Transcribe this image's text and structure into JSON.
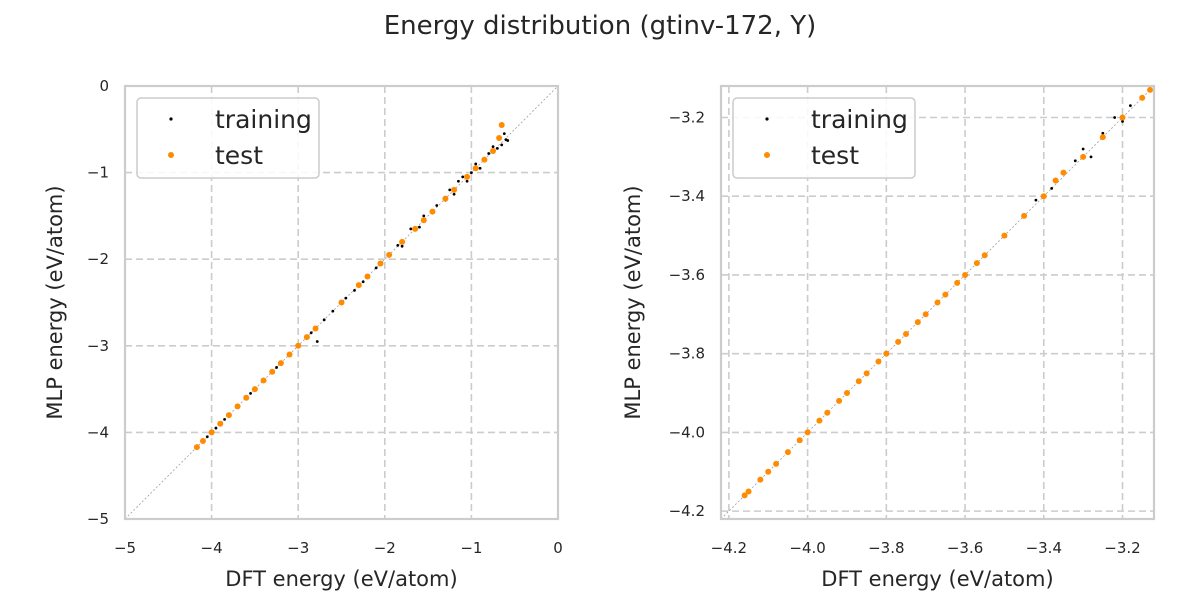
{
  "figure": {
    "title": "Energy distribution (gtinv-172, Y)"
  },
  "colors": {
    "training": "#000000",
    "test": "#ff8c00",
    "grid": "#cccccc",
    "spine": "#cccccc",
    "diagonal": "#a0a0a0"
  },
  "chart_data": [
    {
      "type": "scatter",
      "title": "",
      "xlabel": "DFT energy (eV/atom)",
      "ylabel": "MLP energy (eV/atom)",
      "xlim": [
        -5,
        0
      ],
      "ylim": [
        -5,
        0
      ],
      "xticks": [
        -5,
        -4,
        -3,
        -2,
        -1,
        0
      ],
      "yticks": [
        -5,
        -4,
        -3,
        -2,
        -1,
        0
      ],
      "xtick_labels": [
        "−5",
        "−4",
        "−3",
        "−2",
        "−1",
        "0"
      ],
      "ytick_labels": [
        "−5",
        "−4",
        "−3",
        "−2",
        "−1",
        "0"
      ],
      "grid": true,
      "diagonal_reference": true,
      "legend_position": "upper-left",
      "series": [
        {
          "name": "training",
          "color": "#000000",
          "points": [
            [
              -4.17,
              -4.16
            ],
            [
              -4.05,
              -4.05
            ],
            [
              -3.95,
              -3.95
            ],
            [
              -3.85,
              -3.85
            ],
            [
              -3.7,
              -3.7
            ],
            [
              -3.55,
              -3.55
            ],
            [
              -3.4,
              -3.4
            ],
            [
              -3.25,
              -3.25
            ],
            [
              -3.1,
              -3.1
            ],
            [
              -3.0,
              -3.0
            ],
            [
              -2.85,
              -2.85
            ],
            [
              -2.7,
              -2.7
            ],
            [
              -2.78,
              -2.95
            ],
            [
              -2.6,
              -2.6
            ],
            [
              -2.45,
              -2.45
            ],
            [
              -2.35,
              -2.36
            ],
            [
              -2.25,
              -2.26
            ],
            [
              -2.1,
              -2.1
            ],
            [
              -1.95,
              -1.94
            ],
            [
              -1.85,
              -1.84
            ],
            [
              -1.8,
              -1.85
            ],
            [
              -1.7,
              -1.65
            ],
            [
              -1.6,
              -1.63
            ],
            [
              -1.55,
              -1.5
            ],
            [
              -1.45,
              -1.44
            ],
            [
              -1.4,
              -1.38
            ],
            [
              -1.3,
              -1.32
            ],
            [
              -1.25,
              -1.2
            ],
            [
              -1.2,
              -1.25
            ],
            [
              -1.15,
              -1.1
            ],
            [
              -1.1,
              -1.05
            ],
            [
              -1.05,
              -1.1
            ],
            [
              -1.0,
              -1.0
            ],
            [
              -0.95,
              -0.9
            ],
            [
              -0.9,
              -0.95
            ],
            [
              -0.85,
              -0.85
            ],
            [
              -0.8,
              -0.78
            ],
            [
              -0.75,
              -0.7
            ],
            [
              -0.7,
              -0.72
            ],
            [
              -0.65,
              -0.68
            ],
            [
              -0.6,
              -0.62
            ],
            [
              -0.62,
              -0.55
            ],
            [
              -0.58,
              -0.63
            ]
          ]
        },
        {
          "name": "test",
          "color": "#ff8c00",
          "points": [
            [
              -4.17,
              -4.17
            ],
            [
              -4.1,
              -4.1
            ],
            [
              -4.0,
              -4.0
            ],
            [
              -3.9,
              -3.9
            ],
            [
              -3.8,
              -3.8
            ],
            [
              -3.7,
              -3.7
            ],
            [
              -3.6,
              -3.6
            ],
            [
              -3.5,
              -3.5
            ],
            [
              -3.4,
              -3.4
            ],
            [
              -3.3,
              -3.3
            ],
            [
              -3.2,
              -3.2
            ],
            [
              -3.1,
              -3.1
            ],
            [
              -3.0,
              -3.0
            ],
            [
              -2.9,
              -2.9
            ],
            [
              -2.8,
              -2.8
            ],
            [
              -2.5,
              -2.5
            ],
            [
              -2.3,
              -2.3
            ],
            [
              -2.2,
              -2.2
            ],
            [
              -2.05,
              -2.05
            ],
            [
              -1.95,
              -1.95
            ],
            [
              -1.8,
              -1.8
            ],
            [
              -1.65,
              -1.65
            ],
            [
              -1.55,
              -1.55
            ],
            [
              -1.45,
              -1.45
            ],
            [
              -1.3,
              -1.3
            ],
            [
              -1.2,
              -1.2
            ],
            [
              -1.05,
              -1.05
            ],
            [
              -0.95,
              -0.95
            ],
            [
              -0.85,
              -0.85
            ],
            [
              -0.75,
              -0.75
            ],
            [
              -0.68,
              -0.6
            ],
            [
              -0.65,
              -0.45
            ]
          ]
        }
      ]
    },
    {
      "type": "scatter",
      "title": "",
      "xlabel": "DFT energy (eV/atom)",
      "ylabel": "MLP energy (eV/atom)",
      "xlim": [
        -4.22,
        -3.12
      ],
      "ylim": [
        -4.22,
        -3.12
      ],
      "xticks": [
        -4.2,
        -4.0,
        -3.8,
        -3.6,
        -3.4,
        -3.2
      ],
      "yticks": [
        -4.2,
        -4.0,
        -3.8,
        -3.6,
        -3.4,
        -3.2
      ],
      "xtick_labels": [
        "−4.2",
        "−4.0",
        "−3.8",
        "−3.6",
        "−3.4",
        "−3.2"
      ],
      "ytick_labels": [
        "−4.2",
        "−4.0",
        "−3.8",
        "−3.6",
        "−3.4",
        "−3.2"
      ],
      "grid": true,
      "diagonal_reference": true,
      "legend_position": "upper-left",
      "series": [
        {
          "name": "training",
          "color": "#000000",
          "points": [
            [
              -4.16,
              -4.16
            ],
            [
              -4.1,
              -4.1
            ],
            [
              -4.0,
              -4.0
            ],
            [
              -3.9,
              -3.9
            ],
            [
              -3.8,
              -3.8
            ],
            [
              -3.7,
              -3.7
            ],
            [
              -3.6,
              -3.6
            ],
            [
              -3.55,
              -3.55
            ],
            [
              -3.5,
              -3.5
            ],
            [
              -3.45,
              -3.45
            ],
            [
              -3.42,
              -3.41
            ],
            [
              -3.38,
              -3.38
            ],
            [
              -3.35,
              -3.34
            ],
            [
              -3.32,
              -3.31
            ],
            [
              -3.3,
              -3.28
            ],
            [
              -3.28,
              -3.3
            ],
            [
              -3.25,
              -3.24
            ],
            [
              -3.22,
              -3.2
            ],
            [
              -3.2,
              -3.21
            ],
            [
              -3.18,
              -3.17
            ],
            [
              -3.15,
              -3.15
            ],
            [
              -3.13,
              -3.13
            ]
          ]
        },
        {
          "name": "test",
          "color": "#ff8c00",
          "points": [
            [
              -4.16,
              -4.16
            ],
            [
              -4.15,
              -4.15
            ],
            [
              -4.12,
              -4.12
            ],
            [
              -4.1,
              -4.1
            ],
            [
              -4.08,
              -4.08
            ],
            [
              -4.05,
              -4.05
            ],
            [
              -4.02,
              -4.02
            ],
            [
              -4.0,
              -4.0
            ],
            [
              -3.97,
              -3.97
            ],
            [
              -3.95,
              -3.95
            ],
            [
              -3.92,
              -3.92
            ],
            [
              -3.9,
              -3.9
            ],
            [
              -3.87,
              -3.87
            ],
            [
              -3.85,
              -3.85
            ],
            [
              -3.82,
              -3.82
            ],
            [
              -3.8,
              -3.8
            ],
            [
              -3.77,
              -3.77
            ],
            [
              -3.75,
              -3.75
            ],
            [
              -3.72,
              -3.72
            ],
            [
              -3.7,
              -3.7
            ],
            [
              -3.67,
              -3.67
            ],
            [
              -3.65,
              -3.65
            ],
            [
              -3.62,
              -3.62
            ],
            [
              -3.6,
              -3.6
            ],
            [
              -3.57,
              -3.57
            ],
            [
              -3.55,
              -3.55
            ],
            [
              -3.5,
              -3.5
            ],
            [
              -3.45,
              -3.45
            ],
            [
              -3.4,
              -3.4
            ],
            [
              -3.37,
              -3.36
            ],
            [
              -3.35,
              -3.34
            ],
            [
              -3.3,
              -3.3
            ],
            [
              -3.25,
              -3.25
            ],
            [
              -3.2,
              -3.2
            ],
            [
              -3.15,
              -3.15
            ],
            [
              -3.13,
              -3.13
            ]
          ]
        }
      ]
    }
  ]
}
